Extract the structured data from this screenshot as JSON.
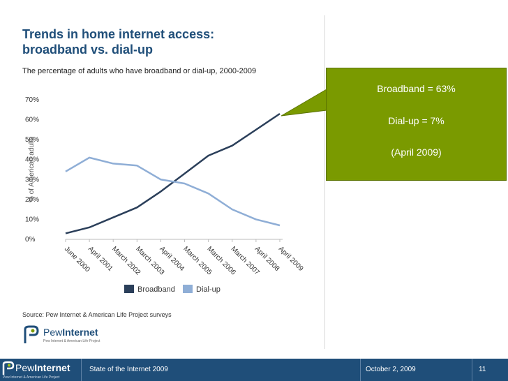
{
  "slide": {
    "title_line1": "Trends in home internet access:",
    "title_line2": "broadband vs. dial-up",
    "subtitle": "The percentage of adults who have broadband or dial-up, 2000-2009",
    "source": "Source: Pew Internet & American Life Project surveys",
    "logo_word_light": "Pew",
    "logo_word_bold": "Internet",
    "logo_tagline": "Pew Internet & American Life Project"
  },
  "callout": {
    "broadband": "Broadband = 63%",
    "dialup": "Dial-up = 7%",
    "date": "(April 2009)",
    "color": "#7a9a00"
  },
  "footer": {
    "logo_word_light": "Pew",
    "logo_word_bold": "Internet",
    "logo_tagline": "Pew Internet & American Life Project",
    "presentation": "State of the Internet 2009",
    "date": "October 2, 2009",
    "page": "11",
    "color": "#1f4e79"
  },
  "chart_data": {
    "type": "line",
    "ylabel": "% of American adults",
    "ylim": [
      0,
      70
    ],
    "yticks": [
      "0%",
      "10%",
      "20%",
      "30%",
      "40%",
      "50%",
      "60%",
      "70%"
    ],
    "categories": [
      "June 2000",
      "April 2001",
      "March 2002",
      "March 2003",
      "April 2004",
      "March 2005",
      "March 2006",
      "March 2007",
      "April 2008",
      "April 2009"
    ],
    "series": [
      {
        "name": "Broadband",
        "color": "#2b3f5a",
        "values": [
          3,
          6,
          11,
          16,
          24,
          33,
          42,
          47,
          55,
          63
        ]
      },
      {
        "name": "Dial-up",
        "color": "#8faed6",
        "values": [
          34,
          41,
          38,
          37,
          30,
          28,
          23,
          15,
          10,
          7
        ]
      }
    ],
    "legend_position": "bottom",
    "grid": false
  }
}
